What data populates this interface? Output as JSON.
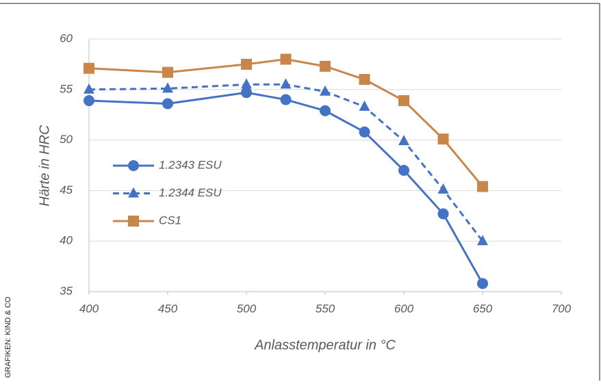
{
  "chart_data": {
    "type": "line",
    "x_label": "Anlasstemperatur in °C",
    "y_label": "Härte in HRC",
    "credit": "GRAFIKEN: KIND & CO",
    "x": [
      400,
      450,
      500,
      525,
      550,
      575,
      600,
      625,
      650
    ],
    "series": [
      {
        "name": "1.2343 ESU",
        "color": "#4472c4",
        "marker": "circle",
        "dash": false,
        "values": [
          53.9,
          53.6,
          54.7,
          54.0,
          52.9,
          50.8,
          47.0,
          42.7,
          35.8
        ]
      },
      {
        "name": "1.2344 ESU",
        "color": "#4472c4",
        "marker": "triangle",
        "dash": true,
        "values": [
          55.0,
          55.1,
          55.5,
          55.5,
          54.8,
          53.3,
          49.9,
          45.1,
          40.0
        ]
      },
      {
        "name": "CS1",
        "color": "#c8864a",
        "marker": "square",
        "dash": false,
        "values": [
          57.1,
          56.7,
          57.5,
          58.0,
          57.3,
          56.0,
          53.9,
          50.1,
          45.4
        ]
      }
    ],
    "xlim": [
      400,
      700
    ],
    "xticks": [
      400,
      450,
      500,
      550,
      600,
      650,
      700
    ],
    "ylim": [
      35,
      60
    ],
    "yticks": [
      35,
      40,
      45,
      50,
      55,
      60
    ],
    "grid": true,
    "legend": "left"
  }
}
